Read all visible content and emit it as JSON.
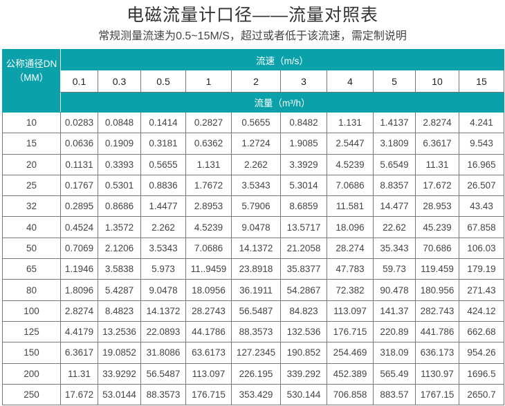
{
  "title": "电磁流量计口径——流量对照表",
  "subtitle": "常规测量流速为0.5~15M/S，超过或者低于该流速，需定制说明",
  "table": {
    "dn_header_line1": "公称通径DN",
    "dn_header_line2": "（MM）",
    "velocity_header": "流速（m/s）",
    "flow_header": "流量（m³/h）",
    "velocities": [
      "0.1",
      "0.3",
      "0.5",
      "1",
      "2",
      "3",
      "4",
      "5",
      "10",
      "15"
    ],
    "rows": [
      {
        "dn": "10",
        "values": [
          "0.0283",
          "0.0848",
          "0.1414",
          "0.2827",
          "0.5655",
          "0.8482",
          "1.131",
          "1.4137",
          "2.8274",
          "4.241"
        ]
      },
      {
        "dn": "15",
        "values": [
          "0.0636",
          "0.1909",
          "0.3181",
          "0.6362",
          "1.2724",
          "1.9085",
          "2.5447",
          "3.1809",
          "6.3617",
          "9.543"
        ]
      },
      {
        "dn": "20",
        "values": [
          "0.1131",
          "0.3393",
          "0.5655",
          "1.131",
          "2.262",
          "3.3929",
          "4.5239",
          "5.6549",
          "11.31",
          "16.965"
        ]
      },
      {
        "dn": "25",
        "values": [
          "0.1767",
          "0.5301",
          "0.8836",
          "1.7672",
          "3.5343",
          "5.3014",
          "7.0686",
          "8.8357",
          "17.672",
          "26.507"
        ]
      },
      {
        "dn": "32",
        "values": [
          "0.2895",
          "0.8686",
          "1.4477",
          "2.8953",
          "5.7906",
          "8.6859",
          "11.581",
          "14.477",
          "28.953",
          "43.43"
        ]
      },
      {
        "dn": "40",
        "values": [
          "0.4524",
          "1.3572",
          "2.262",
          "4.5239",
          "9.0478",
          "13.5717",
          "18.096",
          "22.62",
          "45.239",
          "67.858"
        ]
      },
      {
        "dn": "50",
        "values": [
          "0.7069",
          "2.1206",
          "3.5343",
          "7.0686",
          "14.1372",
          "21.2058",
          "28.274",
          "35.343",
          "70.686",
          "106.03"
        ]
      },
      {
        "dn": "65",
        "values": [
          "1.1946",
          "3.5838",
          "5.973",
          "11..9459",
          "23.8918",
          "35.8377",
          "47.783",
          "59.73",
          "119.459",
          "179.19"
        ]
      },
      {
        "dn": "80",
        "values": [
          "1.8096",
          "5.4287",
          "9.0478",
          "18.0956",
          "36.1911",
          "54.2867",
          "72.382",
          "90.478",
          "180.956",
          "271.43"
        ]
      },
      {
        "dn": "100",
        "values": [
          "2.8274",
          "8.4823",
          "14.1372",
          "28.2743",
          "56.5487",
          "84.823",
          "113.097",
          "141.37",
          "282.743",
          "424.12"
        ]
      },
      {
        "dn": "125",
        "values": [
          "4.4179",
          "13.2536",
          "22.0893",
          "44.1786",
          "88.3573",
          "132.536",
          "176.715",
          "220.89",
          "441.786",
          "662.68"
        ]
      },
      {
        "dn": "150",
        "values": [
          "6.3617",
          "19.0852",
          "31.8086",
          "63.6173",
          "127.2345",
          "190.852",
          "254.469",
          "318.09",
          "636.173",
          "954.26"
        ]
      },
      {
        "dn": "200",
        "values": [
          "11.31",
          "33.9292",
          "56.5487",
          "113.097",
          "226.195",
          "339.292",
          "452.389",
          "565.49",
          "1130.97",
          "1696.5"
        ]
      },
      {
        "dn": "250",
        "values": [
          "17.672",
          "53.0144",
          "88.3573",
          "176.715",
          "353.429",
          "530.144",
          "706.858",
          "883.57",
          "1767.15",
          "2650.7"
        ]
      }
    ]
  },
  "colors": {
    "header_teal": "#0aa1aa"
  }
}
